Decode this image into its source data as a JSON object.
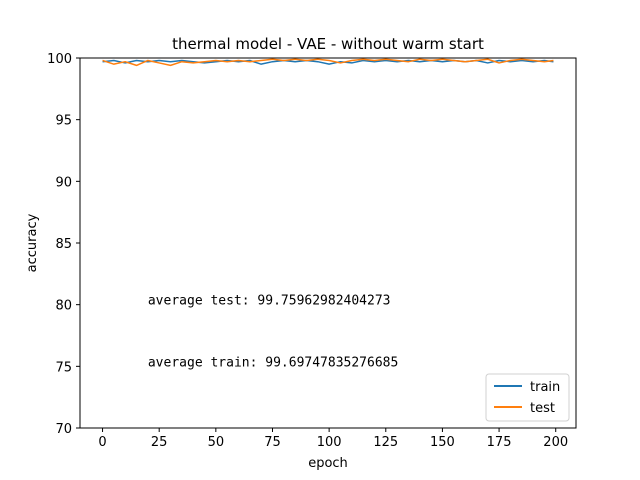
{
  "chart_data": {
    "type": "line",
    "title": "thermal model - VAE - without warm start",
    "xlabel": "epoch",
    "ylabel": "accuracy",
    "xlim": [
      -9.95,
      208.95
    ],
    "ylim": [
      70,
      100
    ],
    "xticks": [
      "0",
      "25",
      "50",
      "75",
      "100",
      "125",
      "150",
      "175",
      "200"
    ],
    "yticks": [
      "70",
      "75",
      "80",
      "85",
      "90",
      "95",
      "100"
    ],
    "grid": false,
    "legend_position": "bottom-right",
    "annotations": [
      {
        "text": "average test: 99.75962982404273",
        "x": 20,
        "y": 80
      },
      {
        "text": "average train: 99.69747835276685",
        "x": 20,
        "y": 75
      }
    ],
    "series": [
      {
        "name": "train",
        "color": "#1f77b4",
        "x": [
          0,
          5,
          10,
          15,
          20,
          25,
          30,
          35,
          40,
          45,
          50,
          55,
          60,
          65,
          70,
          75,
          80,
          85,
          90,
          95,
          100,
          105,
          110,
          115,
          120,
          125,
          130,
          135,
          140,
          145,
          150,
          155,
          160,
          165,
          170,
          175,
          180,
          185,
          190,
          195,
          199
        ],
        "values": [
          99.7,
          99.8,
          99.6,
          99.8,
          99.7,
          99.8,
          99.7,
          99.8,
          99.7,
          99.6,
          99.7,
          99.8,
          99.7,
          99.8,
          99.5,
          99.7,
          99.8,
          99.7,
          99.8,
          99.7,
          99.5,
          99.7,
          99.6,
          99.8,
          99.7,
          99.8,
          99.7,
          99.8,
          99.7,
          99.8,
          99.7,
          99.8,
          99.7,
          99.8,
          99.6,
          99.8,
          99.7,
          99.8,
          99.7,
          99.8,
          99.7
        ]
      },
      {
        "name": "test",
        "color": "#ff7f0e",
        "x": [
          0,
          5,
          10,
          15,
          20,
          25,
          30,
          35,
          40,
          45,
          50,
          55,
          60,
          65,
          70,
          75,
          80,
          85,
          90,
          95,
          100,
          105,
          110,
          115,
          120,
          125,
          130,
          135,
          140,
          145,
          150,
          155,
          160,
          165,
          170,
          175,
          180,
          185,
          190,
          195,
          199
        ],
        "values": [
          99.8,
          99.5,
          99.7,
          99.4,
          99.8,
          99.6,
          99.4,
          99.7,
          99.6,
          99.7,
          99.8,
          99.7,
          99.8,
          99.7,
          99.8,
          99.9,
          99.8,
          99.9,
          99.8,
          99.9,
          99.8,
          99.6,
          99.8,
          99.9,
          99.8,
          99.9,
          99.8,
          99.7,
          99.9,
          99.8,
          99.9,
          99.8,
          99.7,
          99.8,
          99.9,
          99.6,
          99.8,
          99.9,
          99.8,
          99.7,
          99.8
        ]
      }
    ]
  }
}
